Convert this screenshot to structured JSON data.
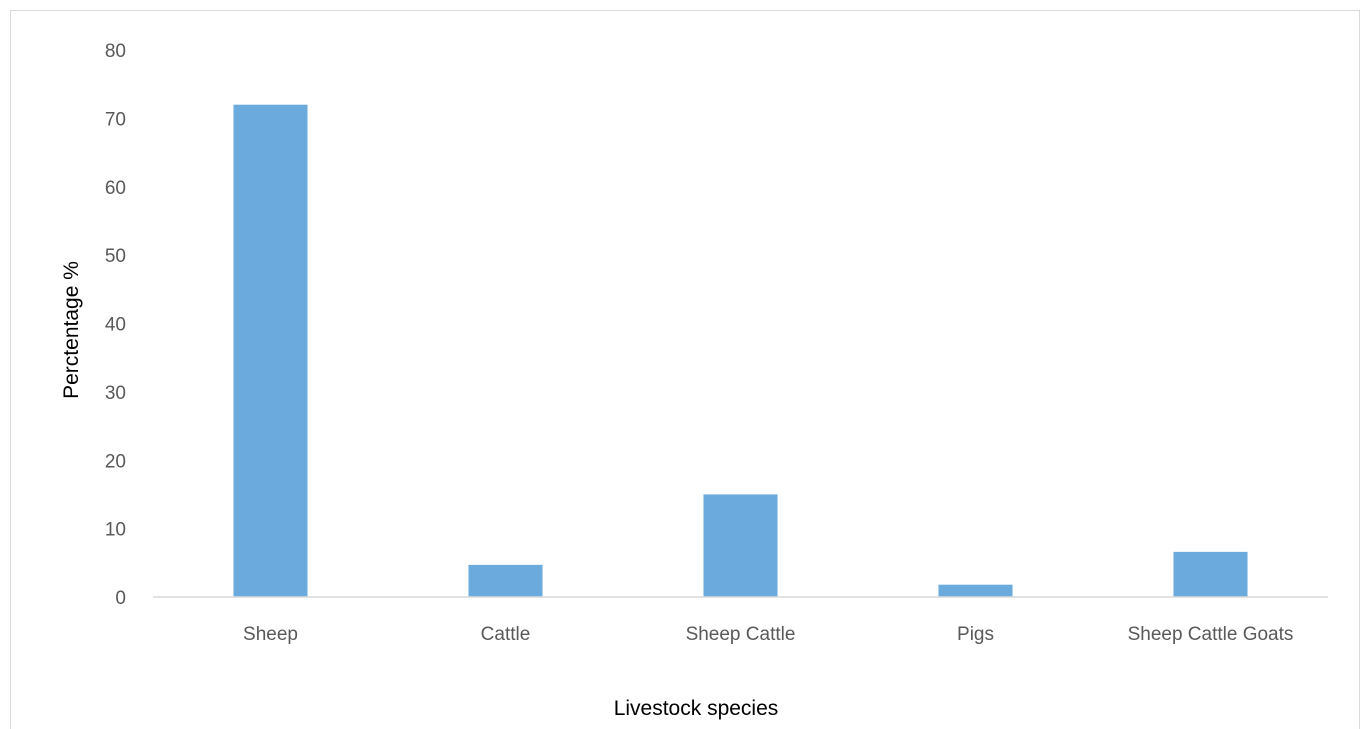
{
  "chart_data": {
    "type": "bar",
    "title": "",
    "xlabel": "Livestock species",
    "ylabel": "Perctentage %",
    "categories": [
      "Sheep",
      "Cattle",
      "Sheep Cattle",
      "Pigs",
      "Sheep Cattle Goats"
    ],
    "series": [
      {
        "values": [
          72,
          4.7,
          15,
          1.8,
          6.6
        ]
      }
    ],
    "ylim": [
      0,
      80
    ],
    "yticks": [
      "0",
      "10",
      "20",
      "30",
      "40",
      "50",
      "60",
      "70",
      "80"
    ],
    "grid": false,
    "legend": "none",
    "bar_color": "#6aaadc",
    "axis_color": "#d9d9d9"
  }
}
